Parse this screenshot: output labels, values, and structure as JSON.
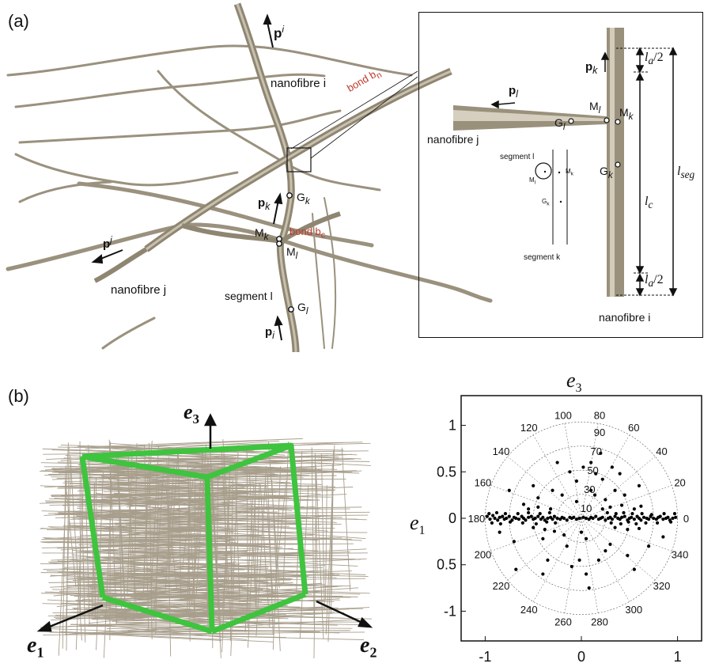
{
  "panel_a": {
    "label": "(a)",
    "texts": {
      "p_i_top": "p",
      "p_i_top_sup": "i",
      "nanofibre_i": "nanofibre i",
      "bond_bn": "bond b",
      "bond_bn_sub": "n",
      "p_k": "p",
      "p_k_sub": "k",
      "G_k": "G",
      "G_k_sub": "k",
      "M_k": "M",
      "M_k_sub": "k",
      "bond_bc": "bond b",
      "bond_bc_sub": "c",
      "M_l": "M",
      "M_l_sub": "l",
      "p_j": "p",
      "p_j_sup": "j",
      "nanofibre_j": "nanofibre j",
      "segment_l": "segment l",
      "G_l": "G",
      "G_l_sub": "l",
      "p_i_bottom": "p",
      "p_i_bottom_sub": "i"
    },
    "inset": {
      "p_k": "p",
      "p_k_sub": "k",
      "p_l": "p",
      "p_l_sub": "l",
      "M_l": "M",
      "M_l_sub": "l",
      "M_k": "M",
      "M_k_sub": "k",
      "G_l": "G",
      "G_l_sub": "l",
      "G_k": "G",
      "G_k_sub": "k",
      "nanofibre_j": "nanofibre j",
      "nanofibre_i": "nanofibre i",
      "segment_l": "segment l",
      "segment_k": "segment k",
      "small_M_l": "M",
      "small_M_l_sub": "l",
      "small_M_k": "M",
      "small_M_k_sub": "k",
      "small_G_k": "G",
      "small_G_k_sub": "k",
      "la_top": "l",
      "la_top_sub": "a",
      "la_top_div": "/2",
      "lseg": "l",
      "lseg_sub": "seg",
      "lc": "l",
      "lc_sub": "c",
      "la_bottom": "l",
      "la_bottom_sub": "a",
      "la_bottom_div": "/2"
    }
  },
  "panel_b": {
    "label": "(b)",
    "axes": {
      "e3": "e",
      "e3_sub": "3",
      "e1": "e",
      "e1_sub": "1",
      "e2": "e",
      "e2_sub": "2"
    },
    "colors": {
      "cube_edge": "#3ec43e",
      "fibre": "#a89e8c"
    }
  },
  "chart_data": {
    "type": "scatter",
    "title": "e",
    "title_sub": "3",
    "ylabel": "e",
    "ylabel_sub": "1",
    "xlim": [
      -1.25,
      1.25
    ],
    "ylim": [
      -1.32,
      1.32
    ],
    "xticks": [
      "-1",
      "0",
      "1"
    ],
    "yticks": [
      "1",
      "0.5",
      "0",
      "-0.5",
      "-1"
    ],
    "ytick_values": [
      1,
      0.5,
      0,
      -0.5,
      -1
    ],
    "xtick_values": [
      -1,
      0,
      1
    ],
    "polar_grid": {
      "radii": [
        0.25,
        0.5,
        0.75,
        1.0
      ],
      "radial_labels": [
        "10",
        "30",
        "50",
        "70",
        "90"
      ],
      "angle_labels": [
        "0",
        "20",
        "40",
        "60",
        "80",
        "100",
        "120",
        "140",
        "160",
        "180",
        "200",
        "220",
        "240",
        "260",
        "280",
        "300",
        "320",
        "340"
      ]
    },
    "points": [
      [
        -0.98,
        0.02
      ],
      [
        -0.95,
        -0.01
      ],
      [
        -0.92,
        0.03
      ],
      [
        -0.9,
        0.0
      ],
      [
        -0.87,
        -0.02
      ],
      [
        -0.85,
        0.01
      ],
      [
        -0.82,
        0.02
      ],
      [
        -0.8,
        -0.01
      ],
      [
        -0.78,
        0.0
      ],
      [
        -0.75,
        0.02
      ],
      [
        -0.72,
        -0.02
      ],
      [
        -0.7,
        0.01
      ],
      [
        -0.68,
        0.0
      ],
      [
        -0.65,
        -0.01
      ],
      [
        -0.62,
        0.02
      ],
      [
        -0.6,
        0.0
      ],
      [
        -0.58,
        -0.02
      ],
      [
        -0.55,
        0.01
      ],
      [
        -0.52,
        0.02
      ],
      [
        -0.5,
        -0.01
      ],
      [
        -0.48,
        0.0
      ],
      [
        -0.45,
        0.02
      ],
      [
        -0.42,
        -0.01
      ],
      [
        -0.4,
        0.01
      ],
      [
        -0.38,
        -0.02
      ],
      [
        -0.35,
        0.0
      ],
      [
        -0.32,
        0.01
      ],
      [
        -0.3,
        -0.01
      ],
      [
        -0.28,
        0.02
      ],
      [
        -0.25,
        0.0
      ],
      [
        -0.22,
        -0.01
      ],
      [
        -0.2,
        0.01
      ],
      [
        -0.18,
        0.0
      ],
      [
        -0.15,
        -0.02
      ],
      [
        -0.12,
        0.01
      ],
      [
        -0.1,
        0.0
      ],
      [
        -0.08,
        0.01
      ],
      [
        -0.05,
        -0.01
      ],
      [
        -0.02,
        0.0
      ],
      [
        0.02,
        0.01
      ],
      [
        0.05,
        0.0
      ],
      [
        0.08,
        -0.01
      ],
      [
        0.1,
        0.01
      ],
      [
        0.12,
        0.0
      ],
      [
        0.15,
        0.02
      ],
      [
        0.18,
        -0.01
      ],
      [
        0.2,
        0.0
      ],
      [
        0.22,
        0.01
      ],
      [
        0.25,
        -0.02
      ],
      [
        0.28,
        0.0
      ],
      [
        0.3,
        0.01
      ],
      [
        0.32,
        -0.01
      ],
      [
        0.35,
        0.02
      ],
      [
        0.38,
        0.0
      ],
      [
        0.4,
        -0.01
      ],
      [
        0.42,
        0.01
      ],
      [
        0.45,
        0.02
      ],
      [
        0.48,
        -0.02
      ],
      [
        0.5,
        0.0
      ],
      [
        0.52,
        0.01
      ],
      [
        0.55,
        -0.01
      ],
      [
        0.58,
        0.02
      ],
      [
        0.6,
        0.0
      ],
      [
        0.62,
        -0.02
      ],
      [
        0.65,
        0.01
      ],
      [
        0.68,
        0.0
      ],
      [
        0.7,
        -0.01
      ],
      [
        0.72,
        0.02
      ],
      [
        0.75,
        0.0
      ],
      [
        0.78,
        -0.01
      ],
      [
        0.8,
        0.01
      ],
      [
        0.82,
        0.02
      ],
      [
        0.85,
        -0.01
      ],
      [
        0.88,
        0.0
      ],
      [
        0.9,
        0.01
      ],
      [
        0.92,
        -0.02
      ],
      [
        0.95,
        0.0
      ],
      [
        0.98,
        0.01
      ],
      [
        -0.96,
        0.05
      ],
      [
        -0.93,
        -0.05
      ],
      [
        -0.88,
        0.06
      ],
      [
        -0.84,
        -0.06
      ],
      [
        -0.79,
        0.05
      ],
      [
        -0.74,
        -0.04
      ],
      [
        -0.66,
        0.05
      ],
      [
        -0.61,
        -0.05
      ],
      [
        -0.55,
        0.06
      ],
      [
        -0.47,
        -0.06
      ],
      [
        -0.43,
        0.05
      ],
      [
        -0.36,
        -0.04
      ],
      [
        -0.33,
        0.06
      ],
      [
        -0.27,
        -0.05
      ],
      [
        0.27,
        0.06
      ],
      [
        0.31,
        -0.05
      ],
      [
        0.36,
        0.05
      ],
      [
        0.41,
        -0.06
      ],
      [
        0.44,
        0.06
      ],
      [
        0.49,
        -0.04
      ],
      [
        0.53,
        0.05
      ],
      [
        0.57,
        -0.06
      ],
      [
        0.63,
        0.05
      ],
      [
        0.67,
        -0.05
      ],
      [
        0.73,
        0.04
      ],
      [
        0.79,
        -0.05
      ],
      [
        0.86,
        0.05
      ],
      [
        0.93,
        -0.04
      ],
      [
        0.97,
        0.05
      ],
      [
        -0.55,
        0.1
      ],
      [
        -0.5,
        -0.1
      ],
      [
        -0.45,
        0.12
      ],
      [
        -0.38,
        -0.12
      ],
      [
        -0.32,
        0.1
      ],
      [
        -0.28,
        -0.14
      ],
      [
        0.3,
        0.12
      ],
      [
        0.35,
        -0.1
      ],
      [
        0.42,
        0.14
      ],
      [
        0.48,
        -0.12
      ],
      [
        0.55,
        0.1
      ],
      [
        0.6,
        -0.11
      ],
      [
        -0.6,
        0.15
      ],
      [
        0.62,
        0.13
      ],
      [
        -0.45,
        0.22
      ],
      [
        -0.4,
        -0.22
      ],
      [
        -0.3,
        0.3
      ],
      [
        -0.2,
        0.25
      ],
      [
        0.1,
        0.3
      ],
      [
        0.25,
        0.2
      ],
      [
        0.35,
        0.3
      ],
      [
        0.45,
        0.25
      ],
      [
        0.3,
        -0.28
      ],
      [
        -0.15,
        -0.3
      ],
      [
        0.05,
        -0.22
      ],
      [
        -0.05,
        0.4
      ],
      [
        0.02,
        0.55
      ],
      [
        0.15,
        0.48
      ],
      [
        0.22,
        0.42
      ],
      [
        0.1,
        0.6
      ],
      [
        -0.12,
        0.5
      ],
      [
        0.32,
        0.55
      ],
      [
        0.4,
        0.48
      ],
      [
        -0.02,
        -0.45
      ],
      [
        0.05,
        -0.6
      ],
      [
        -0.1,
        -0.52
      ],
      [
        0.18,
        -0.45
      ],
      [
        -0.35,
        -0.45
      ],
      [
        0.48,
        -0.4
      ],
      [
        -0.5,
        0.35
      ],
      [
        0.2,
        0.7
      ],
      [
        -0.25,
        0.6
      ],
      [
        0.08,
        -0.75
      ],
      [
        -0.4,
        -0.6
      ],
      [
        0.55,
        -0.55
      ],
      [
        0.6,
        0.35
      ],
      [
        -0.7,
        -0.25
      ],
      [
        -0.75,
        0.3
      ],
      [
        0.85,
        -0.2
      ],
      [
        0.7,
        -0.3
      ],
      [
        -0.85,
        -0.15
      ],
      [
        -0.68,
        -0.55
      ],
      [
        0.25,
        -0.35
      ],
      [
        0.14,
        0.25
      ],
      [
        -0.05,
        0.18
      ],
      [
        0.0,
        -0.15
      ],
      [
        0.22,
        0.1
      ],
      [
        -0.18,
        -0.18
      ]
    ]
  }
}
